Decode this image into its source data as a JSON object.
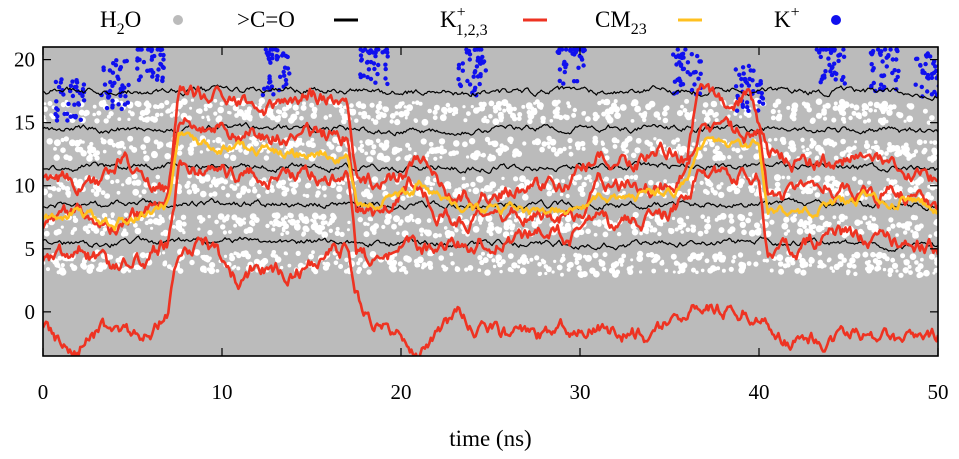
{
  "chart_data": {
    "type": "line",
    "xlabel": "time (ns)",
    "xlim": [
      0,
      50
    ],
    "ylim": [
      -3.5,
      21
    ],
    "x_ticks": [
      "0",
      "10",
      "20",
      "30",
      "40",
      "50"
    ],
    "y_ticks": [
      "0",
      "5",
      "10",
      "15",
      "20"
    ],
    "legend_position": "top, outside plot",
    "legend": [
      {
        "base": "H",
        "sub": "2",
        "after": "O",
        "sup": "",
        "marker": "dot",
        "color": "#bbbbbb"
      },
      {
        "base": ">C=O",
        "sub": "",
        "after": "",
        "sup": "",
        "marker": "line",
        "color": "#000000"
      },
      {
        "base": "K",
        "sub": "1,2,3",
        "after": "",
        "sup": "+",
        "marker": "line",
        "color": "#ee3322"
      },
      {
        "base": "CM",
        "sub": "23",
        "after": "",
        "sup": "",
        "marker": "line",
        "color": "#ffc020"
      },
      {
        "base": "K",
        "sub": "",
        "after": "",
        "sup": "+",
        "marker": "dot",
        "color": "#1010ee"
      }
    ],
    "series": [
      {
        "kind": "carbonyl",
        "points": [
          [
            0,
            17.5
          ],
          [
            10,
            17.6
          ],
          [
            20,
            17.4
          ],
          [
            30,
            17.5
          ],
          [
            40,
            17.6
          ],
          [
            50,
            17.3
          ]
        ]
      },
      {
        "kind": "carbonyl",
        "points": [
          [
            0,
            14.5
          ],
          [
            10,
            14.6
          ],
          [
            20,
            14.4
          ],
          [
            30,
            14.6
          ],
          [
            40,
            14.5
          ],
          [
            50,
            14.3
          ]
        ]
      },
      {
        "kind": "carbonyl",
        "points": [
          [
            0,
            11.5
          ],
          [
            10,
            11.6
          ],
          [
            20,
            11.4
          ],
          [
            30,
            11.5
          ],
          [
            40,
            11.6
          ],
          [
            50,
            11.2
          ]
        ]
      },
      {
        "kind": "carbonyl",
        "points": [
          [
            0,
            8.5
          ],
          [
            10,
            8.6
          ],
          [
            20,
            8.4
          ],
          [
            30,
            8.5
          ],
          [
            40,
            8.6
          ],
          [
            50,
            8.3
          ]
        ]
      },
      {
        "kind": "carbonyl",
        "points": [
          [
            0,
            5.5
          ],
          [
            10,
            5.6
          ],
          [
            20,
            5.5
          ],
          [
            30,
            5.3
          ],
          [
            40,
            5.6
          ],
          [
            50,
            5.2
          ]
        ]
      },
      {
        "kind": "ion",
        "points": [
          [
            0,
            11
          ],
          [
            3,
            10
          ],
          [
            4.5,
            12.5
          ],
          [
            6,
            10
          ],
          [
            7,
            10
          ],
          [
            7.6,
            17.5
          ],
          [
            9,
            17
          ],
          [
            10,
            17.5
          ],
          [
            12,
            16
          ],
          [
            14,
            17
          ],
          [
            16,
            17
          ],
          [
            17,
            16
          ],
          [
            17.5,
            11
          ],
          [
            19,
            10
          ],
          [
            21,
            12
          ],
          [
            22,
            11
          ],
          [
            23,
            9
          ],
          [
            25,
            9.5
          ],
          [
            27,
            10
          ],
          [
            29,
            10
          ],
          [
            31,
            12
          ],
          [
            33,
            12
          ],
          [
            35,
            13
          ],
          [
            36,
            12
          ],
          [
            36.6,
            17.5
          ],
          [
            38,
            17
          ],
          [
            39.5,
            17
          ],
          [
            40.5,
            12.5
          ],
          [
            42,
            12
          ],
          [
            44,
            12
          ],
          [
            46,
            12.5
          ],
          [
            48,
            10.5
          ],
          [
            50,
            11
          ]
        ]
      },
      {
        "kind": "ion",
        "points": [
          [
            0,
            7
          ],
          [
            2,
            8
          ],
          [
            4,
            6.5
          ],
          [
            6,
            8
          ],
          [
            7,
            9
          ],
          [
            7.6,
            14.5
          ],
          [
            9,
            15
          ],
          [
            11,
            14
          ],
          [
            13,
            14
          ],
          [
            15,
            14
          ],
          [
            17,
            14
          ],
          [
            17.5,
            8
          ],
          [
            19,
            7
          ],
          [
            20,
            10
          ],
          [
            21,
            10.5
          ],
          [
            22,
            8
          ],
          [
            24,
            7
          ],
          [
            26,
            7.5
          ],
          [
            28,
            8
          ],
          [
            30,
            7.5
          ],
          [
            31,
            10.5
          ],
          [
            33,
            10
          ],
          [
            35,
            10
          ],
          [
            36,
            11
          ],
          [
            36.6,
            14.5
          ],
          [
            38,
            14
          ],
          [
            40,
            14
          ],
          [
            40.5,
            9
          ],
          [
            42,
            9
          ],
          [
            44,
            10
          ],
          [
            46,
            9
          ],
          [
            48,
            9.5
          ],
          [
            50,
            8
          ]
        ]
      },
      {
        "kind": "ion",
        "points": [
          [
            0,
            4
          ],
          [
            2,
            5
          ],
          [
            4,
            3
          ],
          [
            6,
            4.5
          ],
          [
            7,
            5.5
          ],
          [
            7.6,
            11.5
          ],
          [
            9,
            11
          ],
          [
            11,
            11
          ],
          [
            13,
            10.5
          ],
          [
            15,
            11
          ],
          [
            17,
            11
          ],
          [
            17.5,
            5
          ],
          [
            19,
            3
          ],
          [
            20,
            5
          ],
          [
            21,
            5
          ],
          [
            22,
            5
          ],
          [
            24,
            5.5
          ],
          [
            26,
            6
          ],
          [
            28,
            6
          ],
          [
            30,
            6
          ],
          [
            31,
            7
          ],
          [
            33,
            7
          ],
          [
            35,
            8
          ],
          [
            36,
            8.5
          ],
          [
            36.6,
            11
          ],
          [
            38,
            11
          ],
          [
            40,
            11
          ],
          [
            40.5,
            5
          ],
          [
            42,
            4.5
          ],
          [
            44,
            6.5
          ],
          [
            46,
            5.5
          ],
          [
            48,
            6
          ],
          [
            50,
            5
          ]
        ]
      },
      {
        "kind": "ion",
        "points": [
          [
            0,
            -1
          ],
          [
            1,
            -2.5
          ],
          [
            2,
            -3
          ],
          [
            3,
            -2
          ],
          [
            4,
            -1
          ],
          [
            5,
            -2
          ],
          [
            6,
            -1.5
          ],
          [
            7,
            0
          ],
          [
            7.6,
            5
          ],
          [
            9,
            5.5
          ],
          [
            10,
            4
          ],
          [
            11,
            2
          ],
          [
            12,
            4
          ],
          [
            14,
            3
          ],
          [
            15,
            4
          ],
          [
            17,
            5
          ],
          [
            17.5,
            2
          ],
          [
            18,
            0
          ],
          [
            19,
            -1
          ],
          [
            20,
            -2
          ],
          [
            21,
            -3
          ],
          [
            22,
            -2
          ],
          [
            23,
            0
          ],
          [
            24,
            -1
          ],
          [
            26,
            -2
          ],
          [
            28,
            -2
          ],
          [
            30,
            -1
          ],
          [
            32,
            -1.5
          ],
          [
            34,
            -2
          ],
          [
            35,
            -1
          ],
          [
            36,
            0
          ],
          [
            36.6,
            1
          ],
          [
            38,
            0
          ],
          [
            40,
            0
          ],
          [
            41,
            -2
          ],
          [
            42,
            -2.5
          ],
          [
            44,
            -2
          ],
          [
            46,
            -1.5
          ],
          [
            48,
            -2
          ],
          [
            50,
            -2
          ]
        ]
      },
      {
        "kind": "cm",
        "points": [
          [
            0,
            7.5
          ],
          [
            2,
            8
          ],
          [
            4,
            7
          ],
          [
            6,
            8
          ],
          [
            7,
            8.5
          ],
          [
            7.6,
            14
          ],
          [
            9,
            13.5
          ],
          [
            11,
            13
          ],
          [
            13,
            12.5
          ],
          [
            15,
            12.5
          ],
          [
            17,
            12.5
          ],
          [
            17.5,
            8.5
          ],
          [
            19,
            9
          ],
          [
            21,
            10
          ],
          [
            22,
            9
          ],
          [
            24,
            8
          ],
          [
            26,
            8
          ],
          [
            28,
            8
          ],
          [
            30,
            8
          ],
          [
            31,
            9
          ],
          [
            33,
            9
          ],
          [
            35,
            9.5
          ],
          [
            36,
            10
          ],
          [
            36.6,
            13.5
          ],
          [
            38,
            13.5
          ],
          [
            40,
            13
          ],
          [
            40.5,
            8.5
          ],
          [
            42,
            8
          ],
          [
            44,
            8.5
          ],
          [
            46,
            9
          ],
          [
            48,
            9
          ],
          [
            50,
            8
          ]
        ]
      }
    ]
  }
}
